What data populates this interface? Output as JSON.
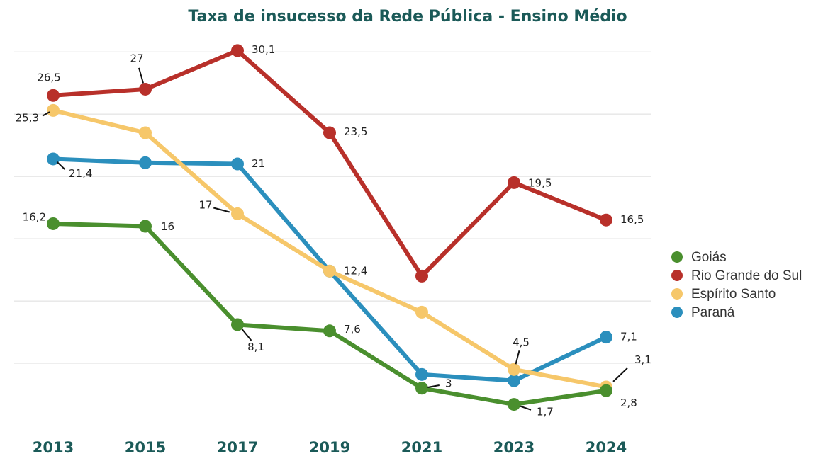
{
  "chart_data": {
    "type": "line",
    "title": "Taxa de insucesso da Rede Pública - Ensino Médio",
    "categories": [
      "2013",
      "2015",
      "2017",
      "2019",
      "2021",
      "2023",
      "2024"
    ],
    "ylim": [
      0,
      32
    ],
    "yticks": [
      5,
      10,
      15,
      20,
      25,
      30
    ],
    "grid": true,
    "y_tick_labels": false,
    "legend": "right",
    "series": [
      {
        "name": "Goiás",
        "color": "#4a8f2e",
        "values": [
          16.2,
          16,
          8.1,
          7.6,
          3,
          1.7,
          2.8
        ],
        "value_labels": [
          "16,2",
          "16",
          "8,1",
          "7,6",
          "3",
          "1,7",
          "2,8"
        ]
      },
      {
        "name": "Rio Grande do Sul",
        "color": "#b8302a",
        "values": [
          26.5,
          27,
          30.1,
          23.5,
          12,
          19.5,
          16.5
        ],
        "value_labels": [
          "26,5",
          "27",
          "30,1",
          "23,5",
          null,
          "19,5",
          "16,5"
        ]
      },
      {
        "name": "Espírito Santo",
        "color": "#f6c76a",
        "values": [
          25.3,
          23.5,
          17,
          12.4,
          9.1,
          4.5,
          3.1
        ],
        "value_labels": [
          "25,3",
          null,
          "17",
          null,
          null,
          "4,5",
          "3,1"
        ]
      },
      {
        "name": "Paraná",
        "color": "#2b8fbd",
        "values": [
          21.4,
          21.1,
          21,
          12.4,
          4.1,
          3.6,
          7.1
        ],
        "value_labels": [
          "21,4",
          null,
          "21",
          "12,4",
          null,
          null,
          "7,1"
        ]
      }
    ]
  }
}
